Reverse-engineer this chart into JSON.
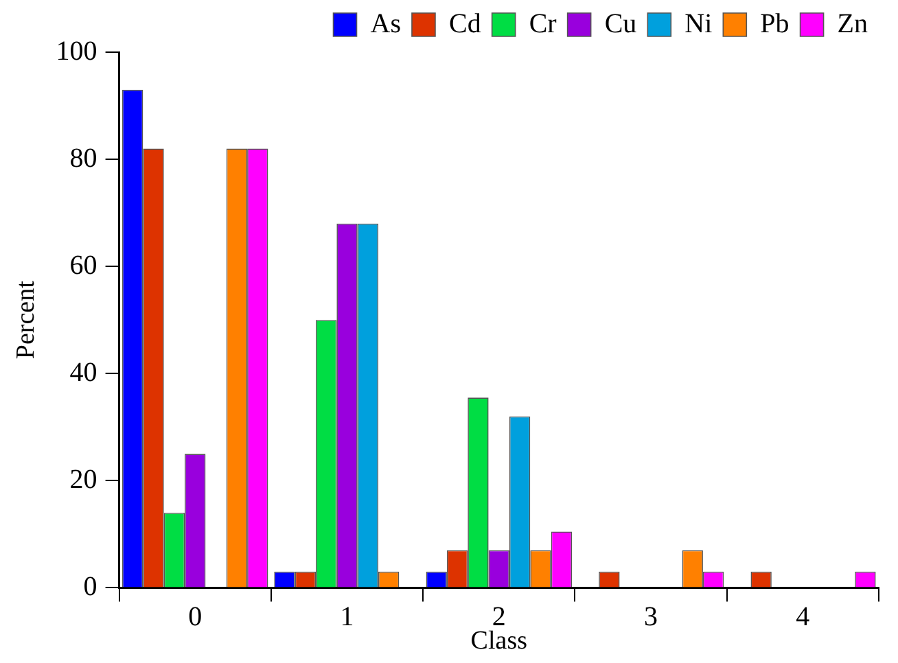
{
  "chart_data": {
    "type": "bar",
    "xlabel": "Class",
    "ylabel": "Percent",
    "categories": [
      "0",
      "1",
      "2",
      "3",
      "4"
    ],
    "series": [
      {
        "name": "As",
        "color": "#0000ff",
        "values": [
          93,
          3,
          3,
          0,
          0
        ]
      },
      {
        "name": "Cd",
        "color": "#dd3300",
        "values": [
          82,
          3,
          7,
          3,
          3
        ]
      },
      {
        "name": "Cr",
        "color": "#00dd44",
        "values": [
          14,
          50,
          35.5,
          0,
          0
        ]
      },
      {
        "name": "Cu",
        "color": "#9900dd",
        "values": [
          25,
          68,
          7,
          0,
          0
        ]
      },
      {
        "name": "Ni",
        "color": "#00a0dd",
        "values": [
          0,
          68,
          32,
          0,
          0
        ]
      },
      {
        "name": "Pb",
        "color": "#ff8000",
        "values": [
          82,
          3,
          7,
          7,
          0
        ]
      },
      {
        "name": "Zn",
        "color": "#ff00ff",
        "values": [
          82,
          0,
          10.5,
          3,
          3
        ]
      }
    ],
    "ylim": [
      0,
      100
    ],
    "yticks": [
      0,
      20,
      40,
      60,
      80,
      100
    ],
    "grid": false,
    "legend": "top right"
  }
}
